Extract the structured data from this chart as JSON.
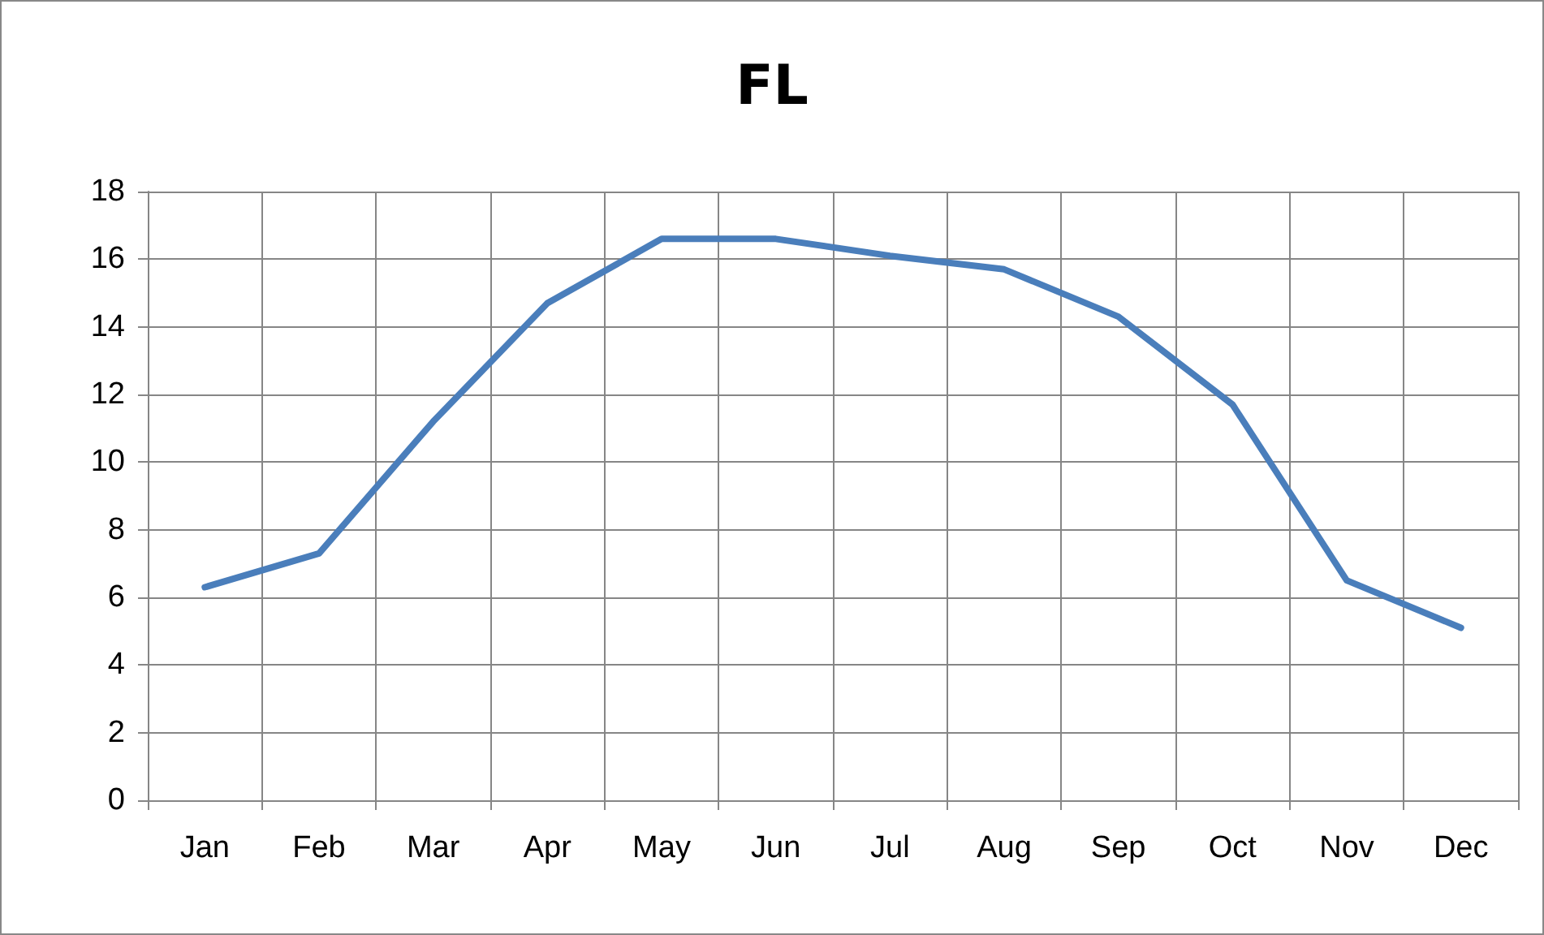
{
  "chart_data": {
    "type": "line",
    "title": "FL",
    "categories": [
      "Jan",
      "Feb",
      "Mar",
      "Apr",
      "May",
      "Jun",
      "Jul",
      "Aug",
      "Sep",
      "Oct",
      "Nov",
      "Dec"
    ],
    "series": [
      {
        "color": "#4a7ebb",
        "values": [
          6.3,
          7.3,
          11.2,
          14.7,
          16.6,
          16.6,
          16.1,
          15.7,
          14.3,
          11.7,
          6.5,
          5.1
        ]
      }
    ],
    "ylim": [
      0,
      18
    ],
    "yticks": [
      0,
      2,
      4,
      6,
      8,
      10,
      12,
      14,
      16,
      18
    ],
    "grid": true,
    "marker": "none",
    "line_style": "solid"
  }
}
